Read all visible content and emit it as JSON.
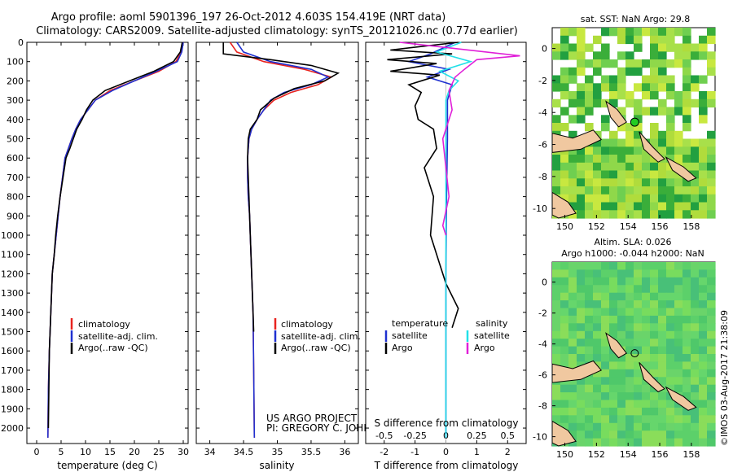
{
  "header": {
    "line1": "Argo profile: aoml 5901396_197 26-Oct-2012 4.603S 154.419E (NRT data)",
    "line2": "Climatology: CARS2009. Satellite-adjusted climatology: synTS_20121026.nc (0.77d earlier)"
  },
  "colors": {
    "clim": "#e8231f",
    "sat": "#1f30d0",
    "argo": "#000000",
    "sal_sat": "#22e0e8",
    "sal_argo": "#e020d8",
    "land": "#f0c8a0"
  },
  "chart_data": [
    {
      "type": "line",
      "title": "",
      "xlabel": "temperature (deg C)",
      "ylabel": "",
      "xlim": [
        -2,
        31
      ],
      "ylim": [
        2080,
        0
      ],
      "xticks": [
        "0",
        "5",
        "10",
        "15",
        "20",
        "25",
        "30"
      ],
      "yticks": [
        "0",
        "100",
        "200",
        "300",
        "400",
        "500",
        "600",
        "700",
        "800",
        "900",
        "1000",
        "1100",
        "1200",
        "1300",
        "1400",
        "1500",
        "1600",
        "1700",
        "1800",
        "1900",
        "2000"
      ],
      "series": [
        {
          "name": "climatology",
          "color": "#e8231f",
          "x": [
            30,
            29.6,
            28.5,
            25,
            20,
            15,
            12,
            10.5,
            9,
            8,
            7.2,
            6.5,
            5.8,
            5.3,
            4.8,
            4.4,
            4,
            3.6,
            3.2,
            2.9,
            2.6,
            2.4,
            2.3
          ],
          "y": [
            0,
            50,
            100,
            150,
            200,
            250,
            300,
            350,
            400,
            450,
            500,
            550,
            600,
            700,
            800,
            900,
            1000,
            1100,
            1200,
            1400,
            1600,
            1800,
            2050
          ]
        },
        {
          "name": "satellite-adj. clim.",
          "color": "#1f30d0",
          "x": [
            30,
            29.7,
            28.8,
            24.5,
            20,
            15.5,
            12,
            10.5,
            9,
            8,
            7.2,
            6.5,
            5.8,
            5.3,
            4.8,
            4.4,
            4,
            3.6,
            3.2,
            2.9,
            2.6,
            2.4,
            2.3
          ],
          "y": [
            0,
            50,
            100,
            150,
            200,
            250,
            300,
            350,
            400,
            450,
            500,
            550,
            600,
            700,
            800,
            900,
            1000,
            1100,
            1200,
            1400,
            1600,
            1800,
            2050
          ]
        },
        {
          "name": "Argo(..raw -QC)",
          "color": "#000000",
          "x": [
            29.8,
            29.4,
            28,
            24,
            19,
            14,
            11.5,
            10.2,
            9.3,
            8.2,
            7.5,
            6.8,
            6,
            5.4,
            4.8,
            4.3,
            3.9,
            3.6,
            3.2,
            2.9,
            2.6,
            2.4
          ],
          "y": [
            0,
            50,
            100,
            150,
            200,
            250,
            300,
            350,
            400,
            450,
            500,
            550,
            600,
            700,
            800,
            900,
            1000,
            1100,
            1200,
            1400,
            1600,
            2000
          ]
        }
      ],
      "legend": [
        "climatology",
        "satellite-adj. clim.",
        "Argo(..raw -QC)"
      ]
    },
    {
      "type": "line",
      "title": "",
      "xlabel": "salinity",
      "ylabel": "",
      "xlim": [
        33.8,
        36.2
      ],
      "ylim": [
        2080,
        0
      ],
      "xticks": [
        "34",
        "34.5",
        "35",
        "35.5",
        "36"
      ],
      "series": [
        {
          "name": "climatology",
          "color": "#e8231f",
          "x": [
            34.3,
            34.4,
            34.8,
            35.4,
            35.8,
            35.6,
            35.2,
            34.95,
            34.8,
            34.7,
            34.62,
            34.58,
            34.56,
            34.56,
            34.57,
            34.59,
            34.6,
            34.62,
            34.64,
            34.65,
            34.66
          ],
          "y": [
            0,
            50,
            100,
            140,
            180,
            220,
            260,
            300,
            350,
            400,
            450,
            500,
            600,
            700,
            800,
            900,
            1000,
            1200,
            1400,
            1700,
            2050
          ]
        },
        {
          "name": "satellite-adj. clim.",
          "color": "#1f30d0",
          "x": [
            34.4,
            34.5,
            34.9,
            35.5,
            35.75,
            35.5,
            35.1,
            34.9,
            34.8,
            34.7,
            34.62,
            34.58,
            34.56,
            34.56,
            34.57,
            34.59,
            34.6,
            34.62,
            34.64,
            34.65,
            34.66
          ],
          "y": [
            0,
            50,
            100,
            140,
            180,
            220,
            260,
            300,
            350,
            400,
            450,
            500,
            600,
            700,
            800,
            900,
            1000,
            1200,
            1400,
            1700,
            2050
          ]
        },
        {
          "name": "Argo(..raw -QC)",
          "color": "#000000",
          "x": [
            34.2,
            34.2,
            34.9,
            35.5,
            35.9,
            35.7,
            35.25,
            34.95,
            34.75,
            34.7,
            34.6,
            34.57,
            34.56,
            34.58,
            34.6,
            34.62,
            34.64,
            34.65
          ],
          "y": [
            0,
            60,
            90,
            120,
            160,
            200,
            240,
            290,
            350,
            400,
            450,
            500,
            600,
            800,
            1000,
            1200,
            1400,
            1500
          ]
        }
      ],
      "legend": [
        "climatology",
        "satellite-adj. clim.",
        "Argo(..raw -QC)"
      ]
    },
    {
      "type": "line",
      "title": "",
      "xlabel": "T difference from climatology",
      "xlabel2": "S difference from climatology",
      "xlim": [
        -2.6,
        2.6
      ],
      "ylim": [
        2080,
        0
      ],
      "xticks": [
        "-2",
        "-1",
        "0",
        "1",
        "2"
      ],
      "xticks_top": [
        "-0.5",
        "-0.25",
        "0",
        "0.25",
        "0.5"
      ],
      "series": [
        {
          "name": "temperature satellite",
          "color": "#1f30d0",
          "x": [
            0.3,
            -0.5,
            -1.2,
            0.1,
            -0.6,
            0.2,
            0.05,
            0.05,
            0.02,
            0,
            0,
            0
          ],
          "y": [
            0,
            60,
            100,
            140,
            180,
            220,
            300,
            500,
            800,
            1200,
            1600,
            2050
          ]
        },
        {
          "name": "temperature Argo",
          "color": "#000000",
          "x": [
            0.4,
            -1.8,
            0.2,
            -1.9,
            -0.3,
            -1.8,
            -0.2,
            -1.2,
            -0.8,
            -1,
            -0.9,
            -0.4,
            -0.3,
            -0.7,
            -0.4,
            -0.5,
            -0.2,
            0,
            0.4,
            0.2
          ],
          "y": [
            0,
            40,
            60,
            90,
            110,
            150,
            170,
            220,
            260,
            330,
            400,
            450,
            550,
            650,
            800,
            1000,
            1150,
            1250,
            1380,
            1480
          ]
        },
        {
          "name": "salinity satellite",
          "color": "#22e0e8",
          "x": [
            0.5,
            -0.3,
            0.8,
            -0.2,
            0.4,
            0.1,
            0,
            0,
            0
          ],
          "y": [
            0,
            50,
            100,
            150,
            200,
            250,
            300,
            800,
            2050
          ]
        },
        {
          "name": "salinity Argo",
          "color": "#e020d8",
          "x": [
            -1.5,
            2.4,
            1,
            0.6,
            0.3,
            0.1,
            0.2,
            -0.1,
            0.1,
            -0.1,
            0
          ],
          "y": [
            0,
            70,
            90,
            140,
            180,
            250,
            350,
            500,
            800,
            950,
            1000
          ]
        }
      ],
      "legend_temperature": {
        "title": "temperature",
        "items": [
          "satellite",
          "Argo"
        ]
      },
      "legend_salinity": {
        "title": "salinity",
        "items": [
          "satellite",
          "Argo"
        ]
      }
    },
    {
      "type": "heatmap",
      "title": "sat. SST: NaN Argo: 29.8",
      "xticks": [
        "150",
        "152",
        "154",
        "156",
        "158"
      ],
      "yticks": [
        "0",
        "-2",
        "-4",
        "-6",
        "-8",
        "-10"
      ],
      "argo_position": {
        "lon": 154.419,
        "lat": -4.603
      }
    },
    {
      "type": "heatmap",
      "title": "Altim. SLA: 0.026",
      "subtitle": "Argo h1000: -0.044 h2000: NaN",
      "xticks": [
        "150",
        "152",
        "154",
        "156",
        "158"
      ],
      "yticks": [
        "0",
        "-2",
        "-4",
        "-6",
        "-8",
        "-10"
      ],
      "argo_position": {
        "lon": 154.419,
        "lat": -4.603
      }
    }
  ],
  "credits": {
    "project": "US ARGO PROJECT",
    "pi": "PI: GREGORY C. JOHNSON",
    "watermark": "©IMOS 03-Aug-2017 21:38:09"
  }
}
